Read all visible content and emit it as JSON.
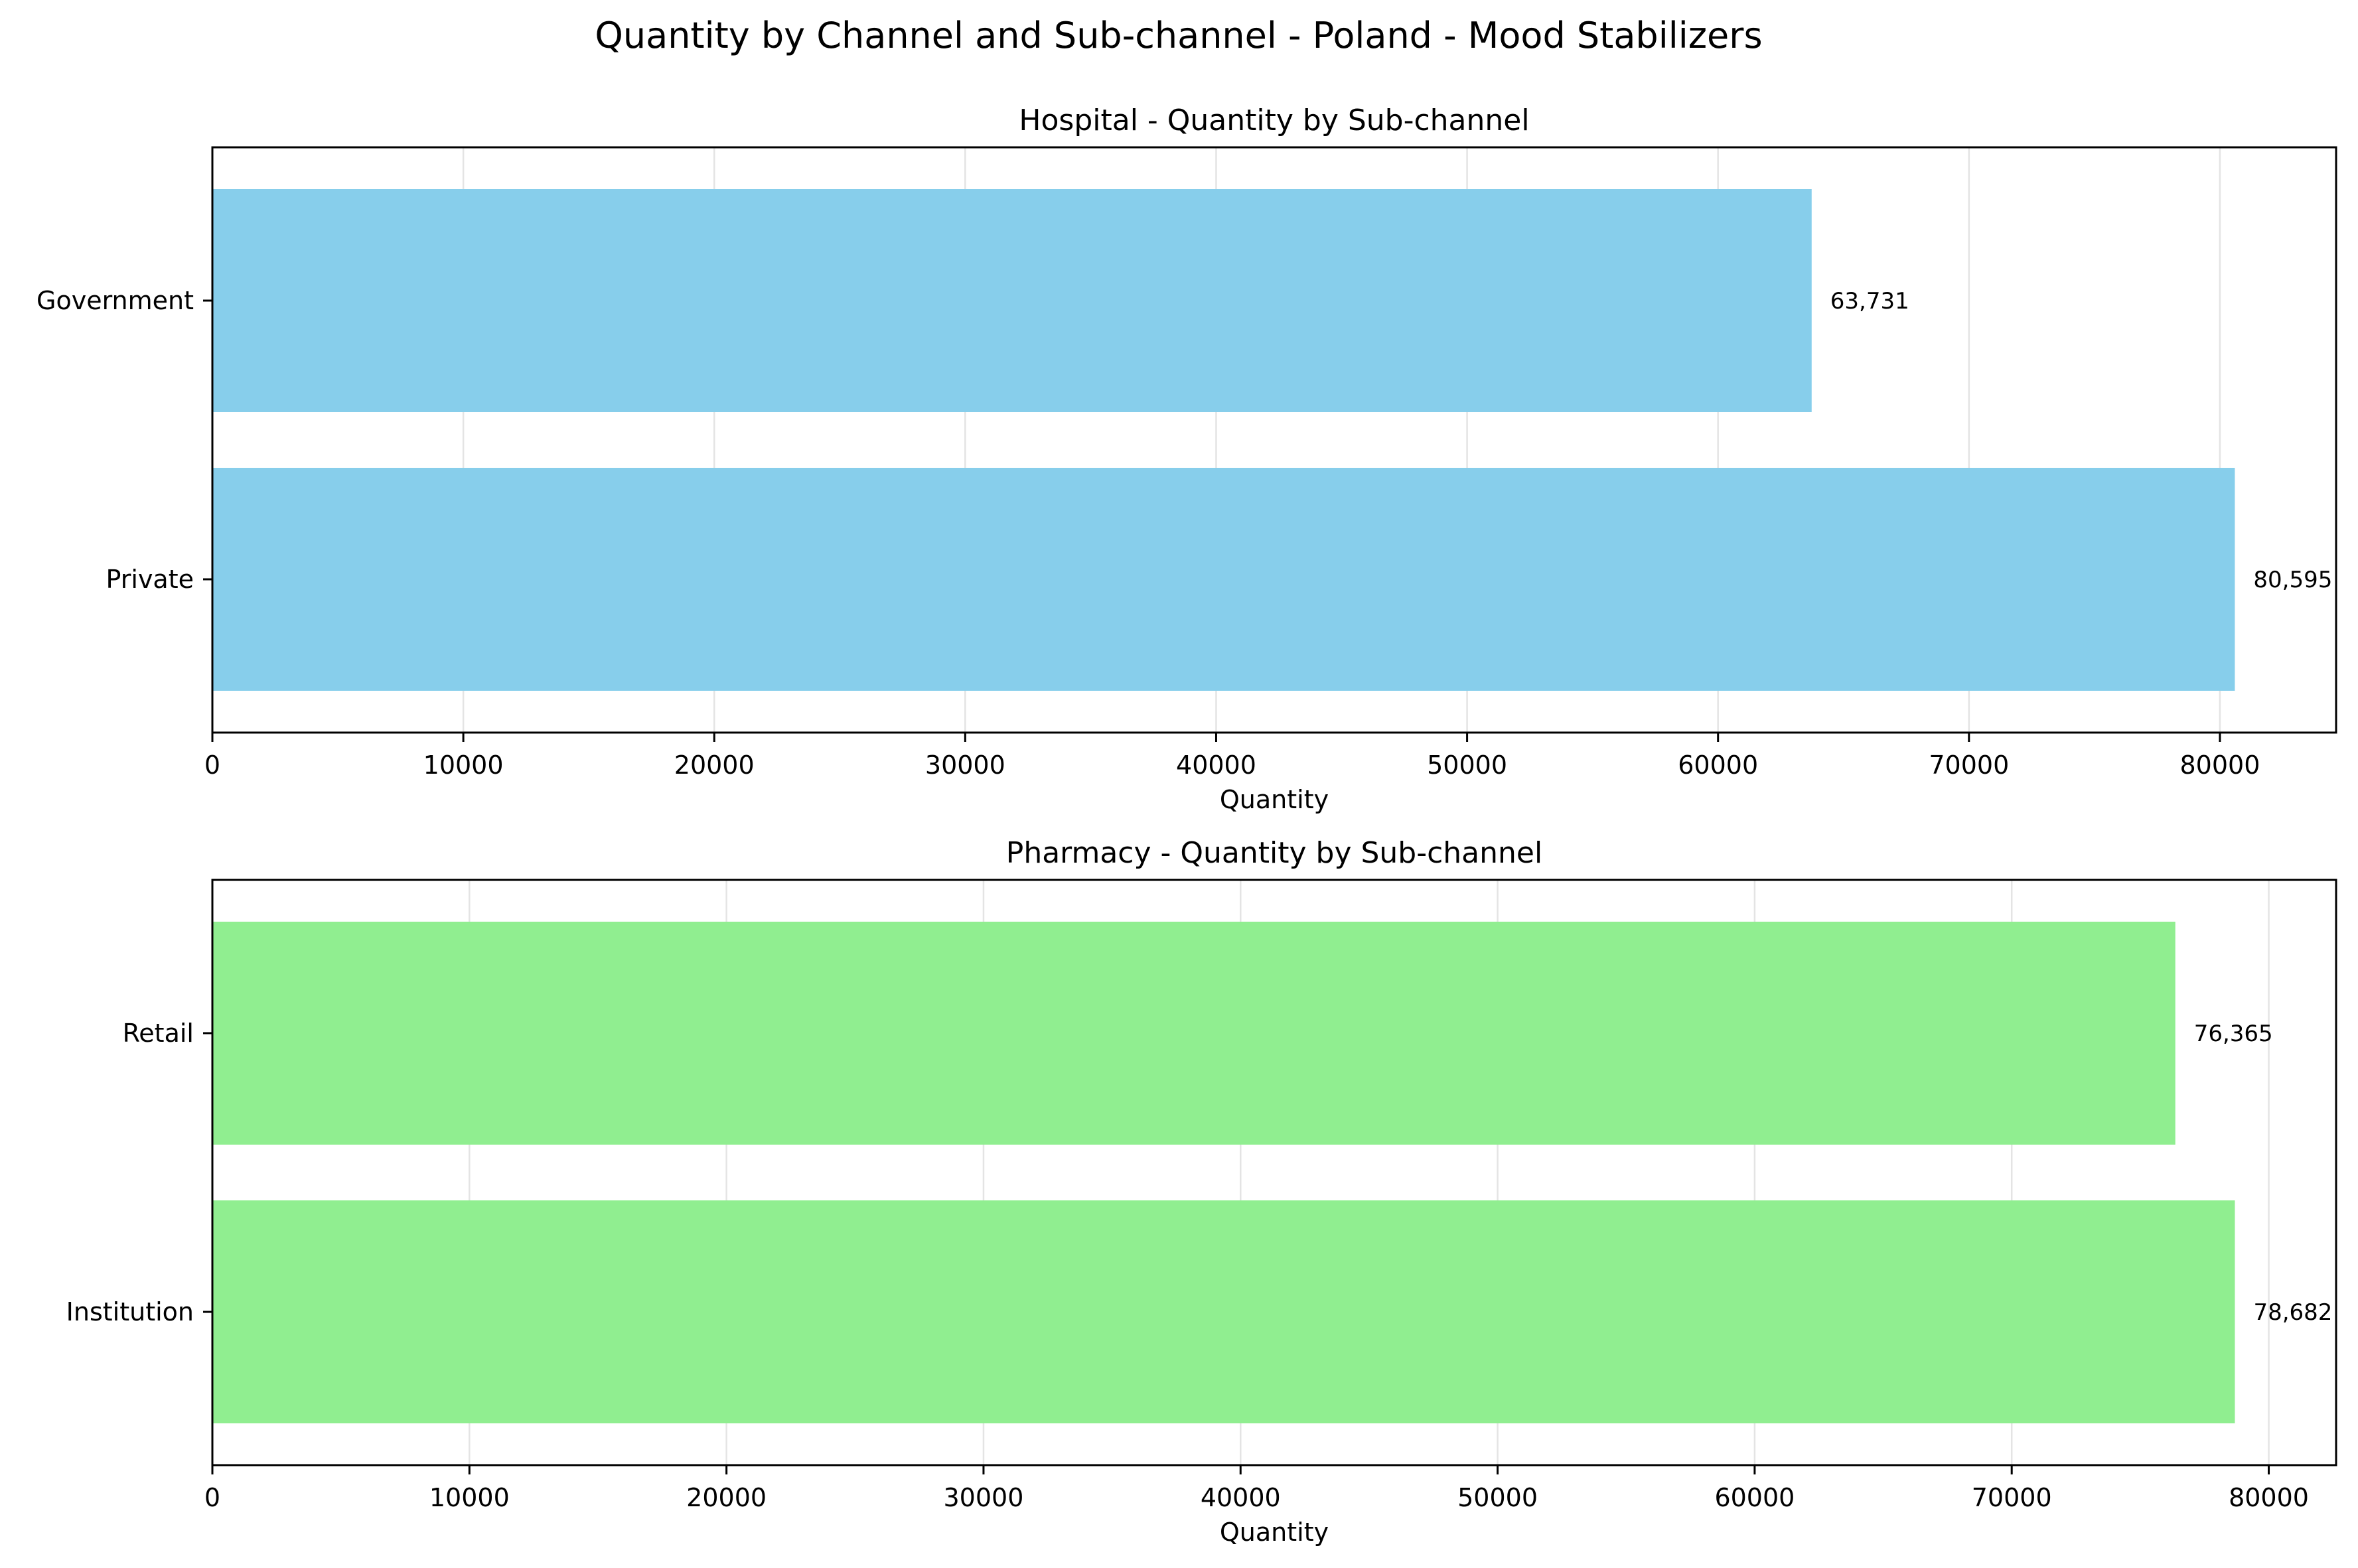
{
  "suptitle": "Quantity by Channel and Sub-channel - Poland - Mood Stabilizers",
  "chart_data": [
    {
      "type": "bar",
      "orientation": "horizontal",
      "title": "Hospital - Quantity by Sub-channel",
      "xlabel": "Quantity",
      "ylabel": "",
      "categories": [
        "Government",
        "Private"
      ],
      "values": [
        63731,
        80595
      ],
      "value_labels": [
        "63,731",
        "80,595"
      ],
      "xlim": [
        0,
        84630
      ],
      "xticks": [
        0,
        10000,
        20000,
        30000,
        40000,
        50000,
        60000,
        70000,
        80000
      ],
      "xtick_labels": [
        "0",
        "10000",
        "20000",
        "30000",
        "40000",
        "50000",
        "60000",
        "70000",
        "80000"
      ],
      "color": "#87CEEB",
      "grid": "x"
    },
    {
      "type": "bar",
      "orientation": "horizontal",
      "title": "Pharmacy - Quantity by Sub-channel",
      "xlabel": "Quantity",
      "ylabel": "",
      "categories": [
        "Retail",
        "Institution"
      ],
      "values": [
        76365,
        78682
      ],
      "value_labels": [
        "76,365",
        "78,682"
      ],
      "xlim": [
        0,
        82620
      ],
      "xticks": [
        0,
        10000,
        20000,
        30000,
        40000,
        50000,
        60000,
        70000,
        80000
      ],
      "xtick_labels": [
        "0",
        "10000",
        "20000",
        "30000",
        "40000",
        "50000",
        "60000",
        "70000",
        "80000"
      ],
      "color": "#90EE90",
      "grid": "x"
    }
  ]
}
